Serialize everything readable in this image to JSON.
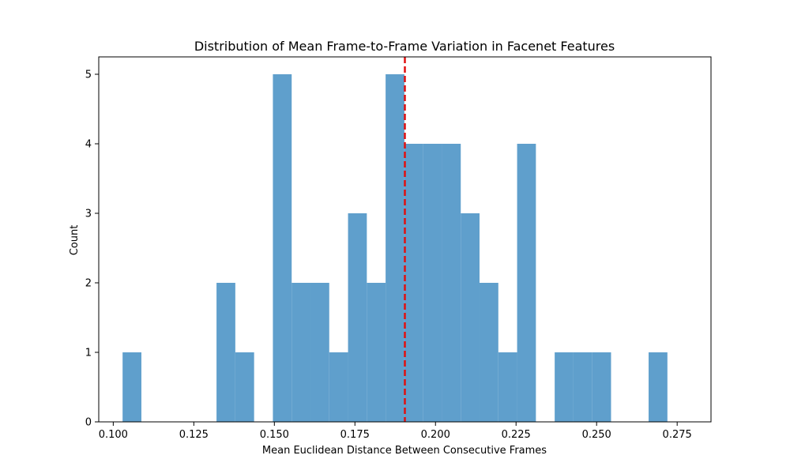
{
  "chart_data": {
    "type": "bar",
    "title": "Distribution of Mean Frame-to-Frame Variation in Facenet Features",
    "xlabel": "Mean Euclidean Distance Between Consecutive Frames",
    "ylabel": "Count",
    "xlim": [
      0.0955,
      0.2855
    ],
    "ylim": [
      0,
      5.25
    ],
    "xticks": [
      0.1,
      0.125,
      0.15,
      0.175,
      0.2,
      0.225,
      0.25,
      0.275
    ],
    "xtick_labels": [
      "0.100",
      "0.125",
      "0.150",
      "0.175",
      "0.200",
      "0.225",
      "0.250",
      "0.275"
    ],
    "yticks": [
      0,
      1,
      2,
      3,
      4,
      5
    ],
    "ytick_labels": [
      "0",
      "1",
      "2",
      "3",
      "4",
      "5"
    ],
    "bin_start": 0.1029,
    "bin_width": 0.00583,
    "counts": [
      1,
      0,
      0,
      0,
      0,
      2,
      1,
      0,
      5,
      2,
      2,
      1,
      3,
      2,
      5,
      4,
      4,
      4,
      3,
      2,
      1,
      4,
      0,
      1,
      1,
      1,
      0,
      0,
      1
    ],
    "mean_line": 0.1905,
    "colors": {
      "bar": "#5f9fcc",
      "mean_line": "#e01010"
    },
    "grid": false
  }
}
